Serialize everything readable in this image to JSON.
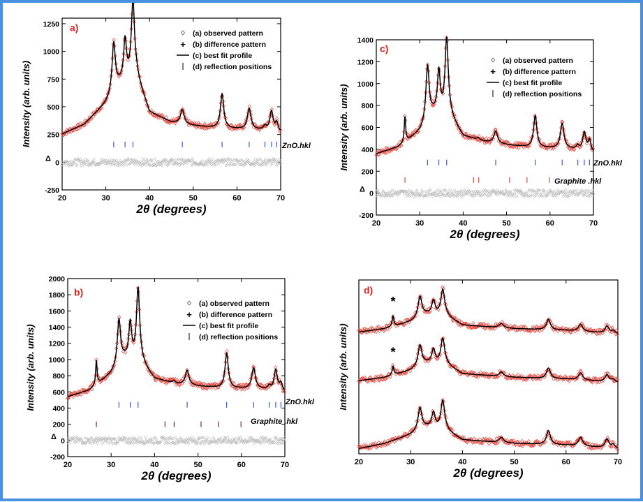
{
  "colors": {
    "frame": "#4a90e2",
    "observed": "#e8463c",
    "fit": "#000000",
    "difference": "#bdbdbd",
    "zno_ticks": "#3a55d6",
    "graphite_ticks_b": "#7a2a2a",
    "graphite_ticks_c": "#e8463c",
    "panel_label": "#e3201b"
  },
  "legend": {
    "observed": "(a) observed pattern",
    "difference": "(b) difference pattern",
    "fit": "(c) best fit profile",
    "reflections": "(d) reflection positions",
    "observed_symbol": "◊",
    "difference_symbol": "+",
    "reflection_symbol": "|"
  },
  "phase_labels": {
    "zno": "ZnO.hkl",
    "graphite": "Graphite .hkl"
  },
  "asterisk": "*",
  "delta": "Δ",
  "chart_data": [
    {
      "id": "a",
      "panel_label": "a)",
      "type": "line",
      "xlabel": "2θ (degrees)",
      "ylabel": "Intensity (arb. units)",
      "xlim": [
        20,
        70
      ],
      "ylim": [
        -250,
        1300
      ],
      "xticks": [
        20,
        30,
        40,
        50,
        60,
        70
      ],
      "yticks": [
        -250,
        0,
        250,
        500,
        750,
        1000,
        1250
      ],
      "baseline": [
        [
          20,
          255
        ],
        [
          25,
          340
        ],
        [
          30,
          530
        ],
        [
          33,
          700
        ],
        [
          37,
          780
        ],
        [
          40,
          450
        ],
        [
          45,
          360
        ],
        [
          50,
          330
        ],
        [
          55,
          310
        ],
        [
          60,
          300
        ],
        [
          65,
          290
        ],
        [
          70,
          265
        ]
      ],
      "peaks": [
        [
          31.8,
          440,
          0.45
        ],
        [
          34.4,
          360,
          0.4
        ],
        [
          36.2,
          680,
          0.45
        ],
        [
          47.5,
          130,
          0.5
        ],
        [
          56.6,
          310,
          0.45
        ],
        [
          62.8,
          190,
          0.5
        ],
        [
          66.4,
          40,
          0.4
        ],
        [
          67.9,
          180,
          0.45
        ],
        [
          69.1,
          80,
          0.4
        ]
      ],
      "difference_offset": 0,
      "difference_noise": 30,
      "zno_reflections": [
        31.8,
        34.4,
        36.2,
        47.5,
        56.6,
        62.8,
        66.4,
        67.9,
        69.1
      ],
      "zno_y": 160
    },
    {
      "id": "b",
      "panel_label": "b)",
      "type": "line",
      "xlabel": "2θ (degrees)",
      "ylabel": "Intensity (arb. units)",
      "xlim": [
        20,
        70
      ],
      "ylim": [
        -200,
        2000
      ],
      "xticks": [
        20,
        30,
        40,
        50,
        60,
        70
      ],
      "yticks": [
        -200,
        0,
        200,
        400,
        600,
        800,
        1000,
        1200,
        1400,
        1600,
        1800,
        2000
      ],
      "baseline": [
        [
          20,
          540
        ],
        [
          25,
          620
        ],
        [
          30,
          820
        ],
        [
          33,
          1000
        ],
        [
          37,
          960
        ],
        [
          40,
          760
        ],
        [
          45,
          700
        ],
        [
          50,
          670
        ],
        [
          55,
          650
        ],
        [
          60,
          640
        ],
        [
          65,
          630
        ],
        [
          70,
          590
        ]
      ],
      "peaks": [
        [
          26.6,
          300,
          0.2
        ],
        [
          31.8,
          560,
          0.45
        ],
        [
          34.4,
          440,
          0.4
        ],
        [
          36.2,
          900,
          0.45
        ],
        [
          44.5,
          30,
          0.3
        ],
        [
          47.5,
          180,
          0.5
        ],
        [
          56.6,
          430,
          0.45
        ],
        [
          62.8,
          260,
          0.5
        ],
        [
          66.4,
          50,
          0.4
        ],
        [
          67.9,
          260,
          0.45
        ],
        [
          69.1,
          100,
          0.4
        ]
      ],
      "difference_offset": 0,
      "difference_noise": 40,
      "zno_reflections": [
        31.8,
        34.4,
        36.2,
        47.5,
        56.6,
        62.8,
        66.4,
        67.9,
        69.1
      ],
      "zno_y": 440,
      "graphite_reflections": [
        26.6,
        42.4,
        44.5,
        50.7,
        54.7,
        59.9
      ],
      "graphite_y": 200
    },
    {
      "id": "c",
      "panel_label": "c)",
      "type": "line",
      "xlabel": "2θ (degrees)",
      "ylabel": "Intensity (arb. units)",
      "xlim": [
        20,
        70
      ],
      "ylim": [
        -200,
        1400
      ],
      "xticks": [
        20,
        30,
        40,
        50,
        60,
        70
      ],
      "yticks": [
        -200,
        0,
        200,
        400,
        600,
        800,
        1000,
        1200,
        1400
      ],
      "baseline": [
        [
          20,
          360
        ],
        [
          25,
          420
        ],
        [
          30,
          560
        ],
        [
          33,
          720
        ],
        [
          37,
          700
        ],
        [
          40,
          520
        ],
        [
          45,
          470
        ],
        [
          50,
          440
        ],
        [
          55,
          420
        ],
        [
          60,
          410
        ],
        [
          65,
          400
        ],
        [
          70,
          360
        ]
      ],
      "peaks": [
        [
          26.6,
          230,
          0.2
        ],
        [
          31.8,
          500,
          0.45
        ],
        [
          34.4,
          380,
          0.4
        ],
        [
          36.2,
          700,
          0.45
        ],
        [
          43.5,
          20,
          0.3
        ],
        [
          47.5,
          110,
          0.5
        ],
        [
          56.6,
          290,
          0.45
        ],
        [
          62.8,
          230,
          0.5
        ],
        [
          66.4,
          40,
          0.4
        ],
        [
          67.9,
          170,
          0.45
        ],
        [
          69.1,
          110,
          0.4
        ]
      ],
      "difference_offset": 0,
      "difference_noise": 30,
      "zno_reflections": [
        31.8,
        34.4,
        36.2,
        47.5,
        56.6,
        62.8,
        66.4,
        67.9,
        69.1
      ],
      "zno_y": 280,
      "graphite_reflections": [
        26.6,
        42.4,
        43.6,
        50.7,
        54.7,
        59.9
      ],
      "graphite_y": 120
    },
    {
      "id": "d",
      "panel_label": "d)",
      "type": "line",
      "xlabel": "2θ (degrees)",
      "ylabel": "Intensity (arb. units)",
      "xlim": [
        20,
        70
      ],
      "ylim": [
        0,
        100
      ],
      "xticks": [
        20,
        30,
        40,
        50,
        60,
        70
      ],
      "yticks": [],
      "stacked": [
        {
          "offset": 70,
          "starred": true,
          "baseline": [
            [
              20,
              0
            ],
            [
              25,
              2
            ],
            [
              30,
              6
            ],
            [
              33,
              10
            ],
            [
              37,
              9
            ],
            [
              40,
              4
            ],
            [
              50,
              2
            ],
            [
              60,
              1
            ],
            [
              70,
              -1
            ]
          ],
          "peaks": [
            [
              26.6,
              6,
              0.2
            ],
            [
              31.8,
              12,
              0.45
            ],
            [
              34.4,
              8,
              0.4
            ],
            [
              36.2,
              15,
              0.45
            ],
            [
              47.5,
              2.5,
              0.5
            ],
            [
              56.6,
              6,
              0.45
            ],
            [
              62.8,
              4,
              0.5
            ],
            [
              67.9,
              4,
              0.45
            ],
            [
              69.1,
              1.5,
              0.4
            ]
          ]
        },
        {
          "offset": 42,
          "starred": true,
          "baseline": [
            [
              20,
              0
            ],
            [
              25,
              2
            ],
            [
              30,
              6
            ],
            [
              33,
              10
            ],
            [
              37,
              9
            ],
            [
              40,
              4
            ],
            [
              50,
              2
            ],
            [
              60,
              1
            ],
            [
              70,
              -1
            ]
          ],
          "peaks": [
            [
              26.6,
              5,
              0.2
            ],
            [
              31.8,
              12,
              0.45
            ],
            [
              34.4,
              8,
              0.4
            ],
            [
              36.2,
              15,
              0.45
            ],
            [
              47.5,
              2.5,
              0.5
            ],
            [
              56.6,
              6,
              0.45
            ],
            [
              62.8,
              4,
              0.5
            ],
            [
              67.9,
              4,
              0.45
            ],
            [
              69.1,
              1.5,
              0.4
            ]
          ]
        },
        {
          "offset": 3,
          "starred": false,
          "baseline": [
            [
              20,
              0
            ],
            [
              25,
              3
            ],
            [
              30,
              8
            ],
            [
              33,
              12
            ],
            [
              37,
              10
            ],
            [
              40,
              5
            ],
            [
              50,
              3
            ],
            [
              60,
              2
            ],
            [
              70,
              0
            ]
          ],
          "peaks": [
            [
              31.8,
              13,
              0.45
            ],
            [
              34.4,
              9,
              0.4
            ],
            [
              36.2,
              17,
              0.45
            ],
            [
              47.5,
              3,
              0.5
            ],
            [
              56.6,
              8,
              0.45
            ],
            [
              62.8,
              5,
              0.5
            ],
            [
              67.9,
              5,
              0.45
            ],
            [
              69.1,
              2,
              0.4
            ]
          ]
        }
      ],
      "star_x": 26.6
    }
  ]
}
